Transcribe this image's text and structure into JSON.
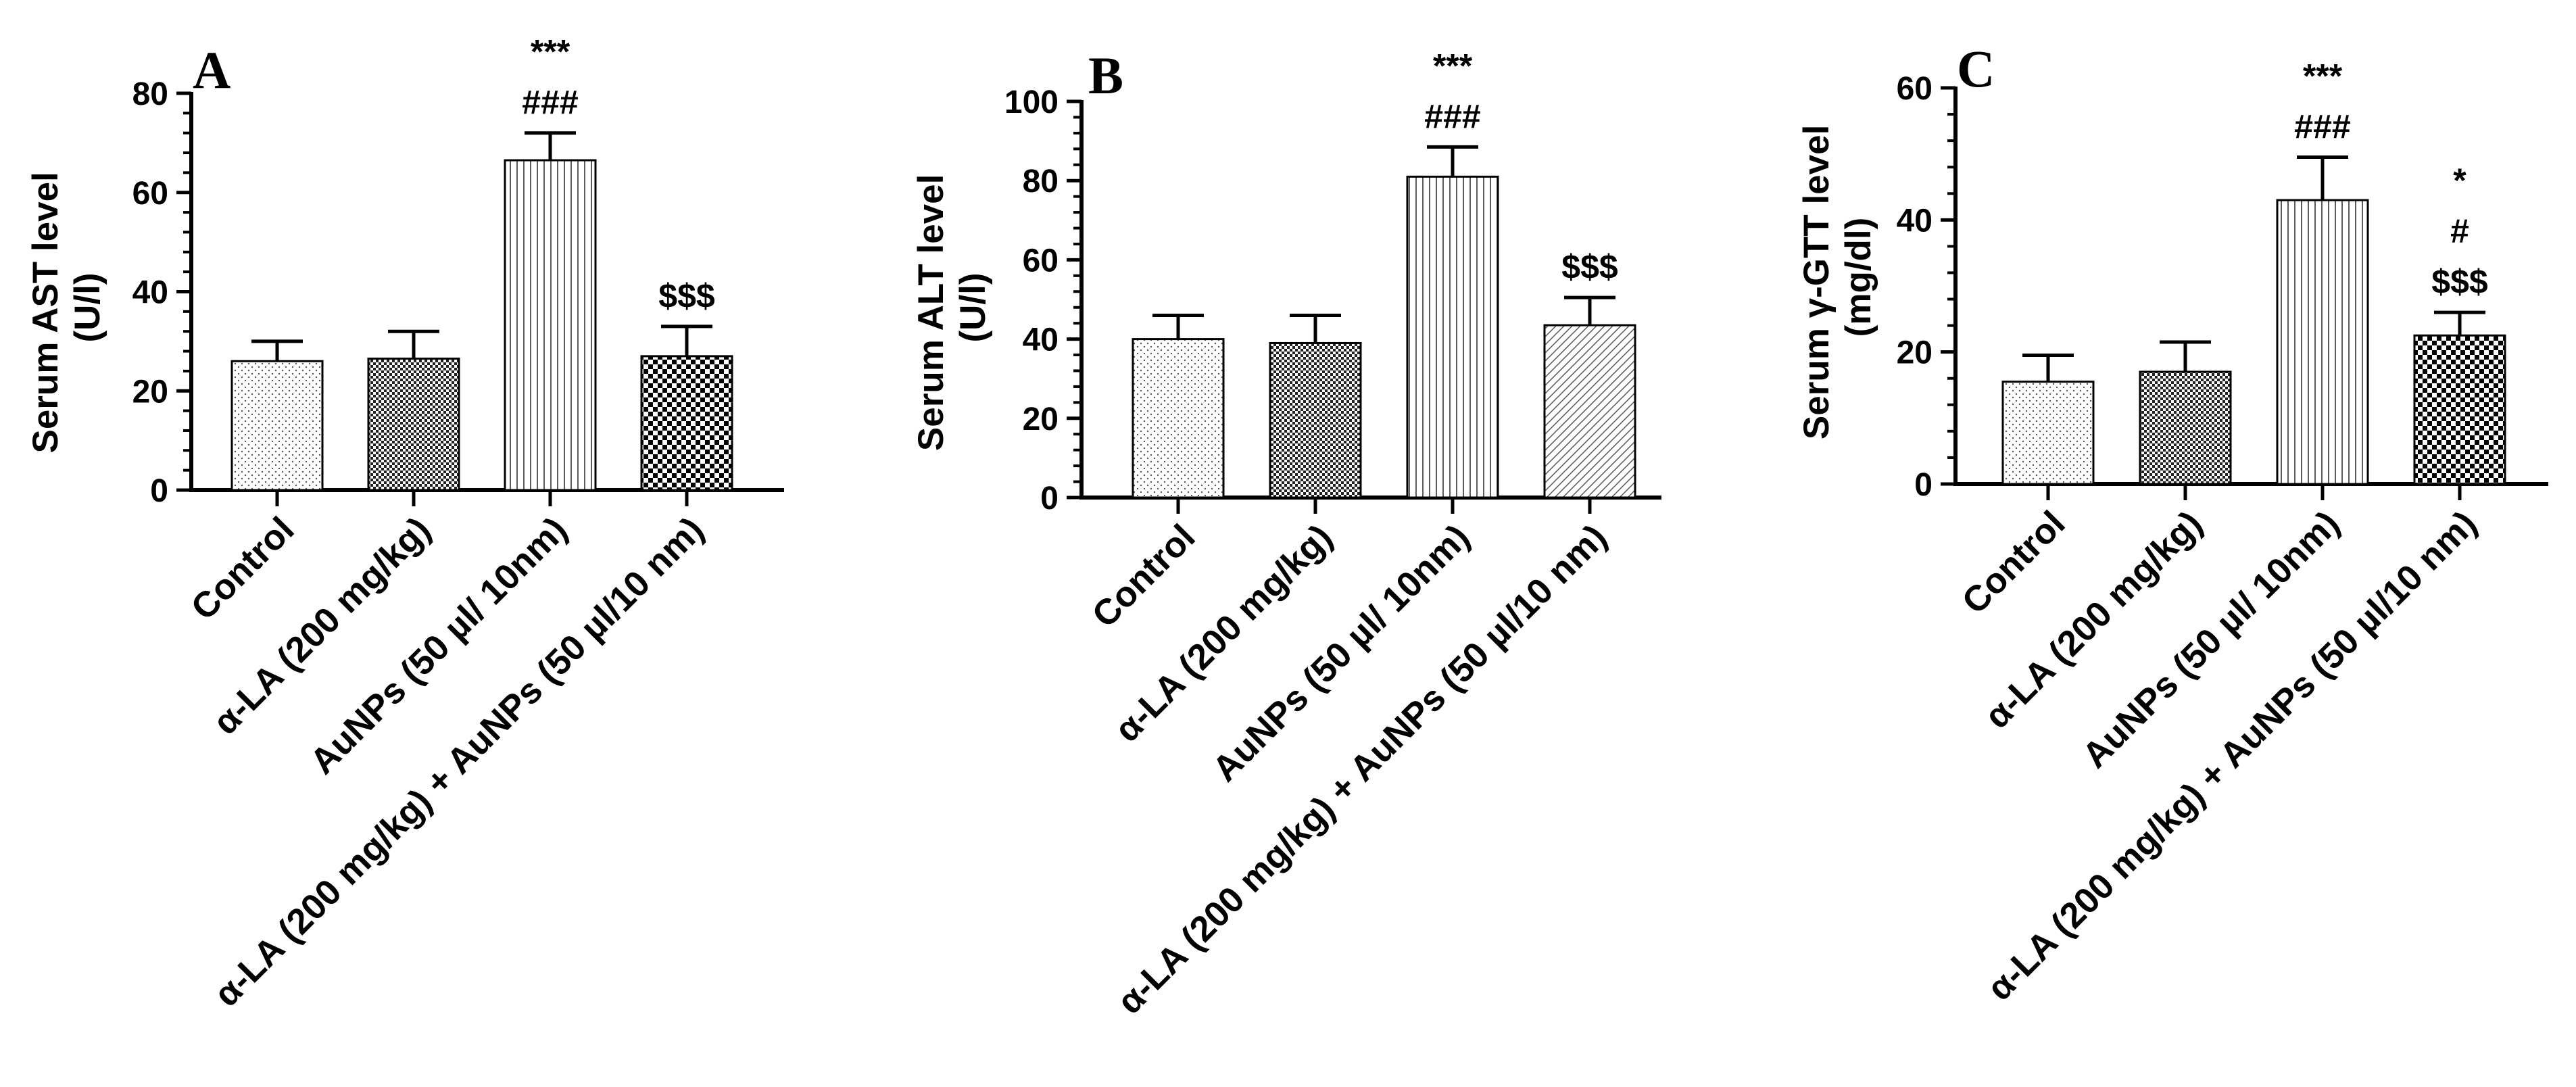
{
  "chart_data": [
    {
      "type": "bar",
      "panel": "A",
      "ylabel_lines": [
        "Serum AST level",
        "(U/l)"
      ],
      "ylim": [
        0,
        80
      ],
      "yticks": [
        0,
        20,
        40,
        60,
        80
      ],
      "categories": [
        "Control",
        "α-LA (200 mg/kg)",
        "AuNPs (50 µl/ 10nm)",
        "α-LA (200 mg/kg) + AuNPs (50 µl/10 nm)"
      ],
      "values": [
        26,
        26.5,
        66.5,
        27
      ],
      "errors": [
        4,
        5.5,
        5.5,
        6
      ],
      "significance": [
        [],
        [],
        [
          "***",
          "###"
        ],
        [
          "$$$"
        ]
      ]
    },
    {
      "type": "bar",
      "panel": "B",
      "ylabel_lines": [
        "Serum  ALT level",
        "(U/l)"
      ],
      "ylim": [
        0,
        100
      ],
      "yticks": [
        0,
        20,
        40,
        60,
        80,
        100
      ],
      "categories": [
        "Control",
        "α-LA  (200 mg/kg)",
        "AuNPs (50 µl/ 10nm)",
        "α-LA  (200 mg/kg) + AuNPs (50 µl/10 nm)"
      ],
      "values": [
        40,
        39,
        81,
        43.5
      ],
      "errors": [
        6,
        7,
        7.5,
        7
      ],
      "significance": [
        [],
        [],
        [
          "***",
          "###"
        ],
        [
          "$$$"
        ]
      ]
    },
    {
      "type": "bar",
      "panel": "C",
      "ylabel_lines": [
        "Serum γ-GTT level",
        "(mg/dl)"
      ],
      "ylim": [
        0,
        60
      ],
      "yticks": [
        0,
        20,
        40,
        60
      ],
      "categories": [
        "Control",
        "α-LA (200 mg/kg)",
        "AuNPs (50 µl/ 10nm)",
        "α-LA (200 mg/kg) + AuNPs (50 µl/10 nm)"
      ],
      "values": [
        15.5,
        17,
        43,
        22.5
      ],
      "errors": [
        4,
        4.5,
        6.5,
        3.5
      ],
      "significance": [
        [],
        [],
        [
          "***",
          "###"
        ],
        [
          "*",
          "#",
          "$$$"
        ]
      ]
    }
  ],
  "patterns": [
    "dots",
    "checker-fine",
    "vertical-lines",
    "checker-bold",
    "diagonal"
  ],
  "bar_patterns": [
    [
      "dots",
      "checker-fine",
      "vertical-lines",
      "checker-bold"
    ],
    [
      "dots",
      "checker-fine",
      "vertical-lines",
      "diagonal"
    ],
    [
      "dots",
      "checker-fine",
      "vertical-lines",
      "checker-bold"
    ]
  ],
  "colors": {
    "axis": "#000000",
    "pattern": "#000000",
    "background": "#ffffff"
  }
}
